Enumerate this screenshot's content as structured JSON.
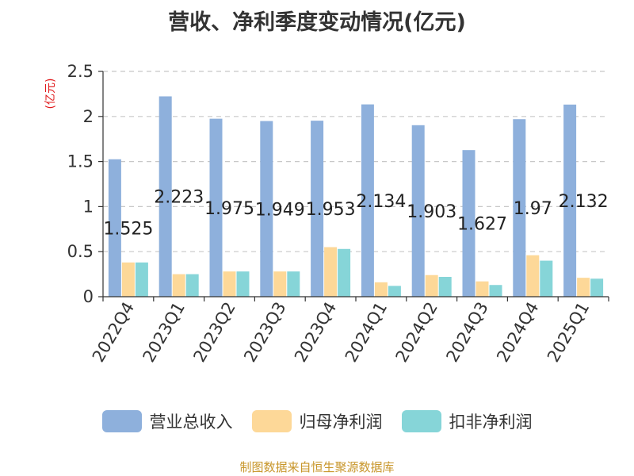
{
  "chart_data": {
    "type": "bar",
    "title": "营收、净利季度变动情况(亿元)",
    "ylabel": "(亿元)",
    "xlabel": "",
    "ylim": [
      0,
      2.5
    ],
    "yticks": [
      "0",
      "0.5",
      "1",
      "1.5",
      "2",
      "2.5"
    ],
    "categories": [
      "2022Q4",
      "2023Q1",
      "2023Q2",
      "2023Q3",
      "2023Q4",
      "2024Q1",
      "2024Q2",
      "2024Q3",
      "2024Q4",
      "2025Q1"
    ],
    "series": [
      {
        "name": "营业总收入",
        "color": "#8eb0dc",
        "values": [
          1.525,
          2.223,
          1.975,
          1.949,
          1.953,
          2.134,
          1.903,
          1.627,
          1.97,
          2.132
        ],
        "labels": [
          "1.525",
          "2.223",
          "1.975",
          "1.949",
          "1.953",
          "2.134",
          "1.903",
          "1.627",
          "1.97",
          "2.132"
        ]
      },
      {
        "name": "归母净利润",
        "color": "#fdd898",
        "values": [
          0.38,
          0.25,
          0.28,
          0.28,
          0.55,
          0.16,
          0.24,
          0.17,
          0.46,
          0.21
        ]
      },
      {
        "name": "扣非净利润",
        "color": "#86d5d8",
        "values": [
          0.38,
          0.25,
          0.28,
          0.28,
          0.53,
          0.12,
          0.22,
          0.13,
          0.4,
          0.2
        ]
      }
    ],
    "grid": true,
    "gridStyle": "dashed",
    "legendPlacement": "bottom"
  },
  "source": "制图数据来自恒生聚源数据库"
}
